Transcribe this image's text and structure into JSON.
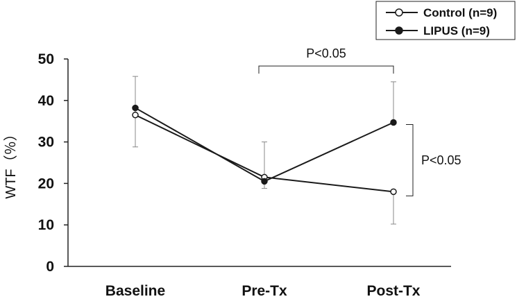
{
  "chart_data": {
    "type": "line",
    "title": "",
    "xlabel": "",
    "ylabel": "WTF（％）",
    "categories": [
      "Baseline",
      "Pre-Tx",
      "Post-Tx"
    ],
    "ylim": [
      0,
      50
    ],
    "yticks": [
      0,
      10,
      20,
      30,
      40,
      50
    ],
    "grid": false,
    "legend_position": "top-right",
    "series": [
      {
        "name": "Control",
        "legend_label": "Control (n=9)",
        "marker": "open-circle",
        "values": [
          36.5,
          21.5,
          18.0
        ],
        "error_upper": [
          45.8,
          30.0,
          18.0
        ],
        "error_lower": [
          28.8,
          21.5,
          10.2
        ]
      },
      {
        "name": "LIPUS",
        "legend_label": "LIPUS (n=9)",
        "marker": "filled-circle",
        "values": [
          38.2,
          20.5,
          34.7
        ],
        "error_upper": [
          38.2,
          20.5,
          44.5
        ],
        "error_lower": [
          38.2,
          18.8,
          34.7
        ]
      }
    ],
    "annotations": [
      {
        "text": "P<0.05",
        "type": "horizontal-bracket",
        "between": [
          "Pre-Tx",
          "Post-Tx"
        ],
        "at_value": 48.3
      },
      {
        "text": "P<0.05",
        "type": "vertical-bracket",
        "category": "Post-Tx",
        "range": [
          17.0,
          34.2
        ]
      }
    ],
    "colors": {
      "line": "#1a1a1a",
      "errorbar": "#888888",
      "axis": "#222222"
    }
  }
}
